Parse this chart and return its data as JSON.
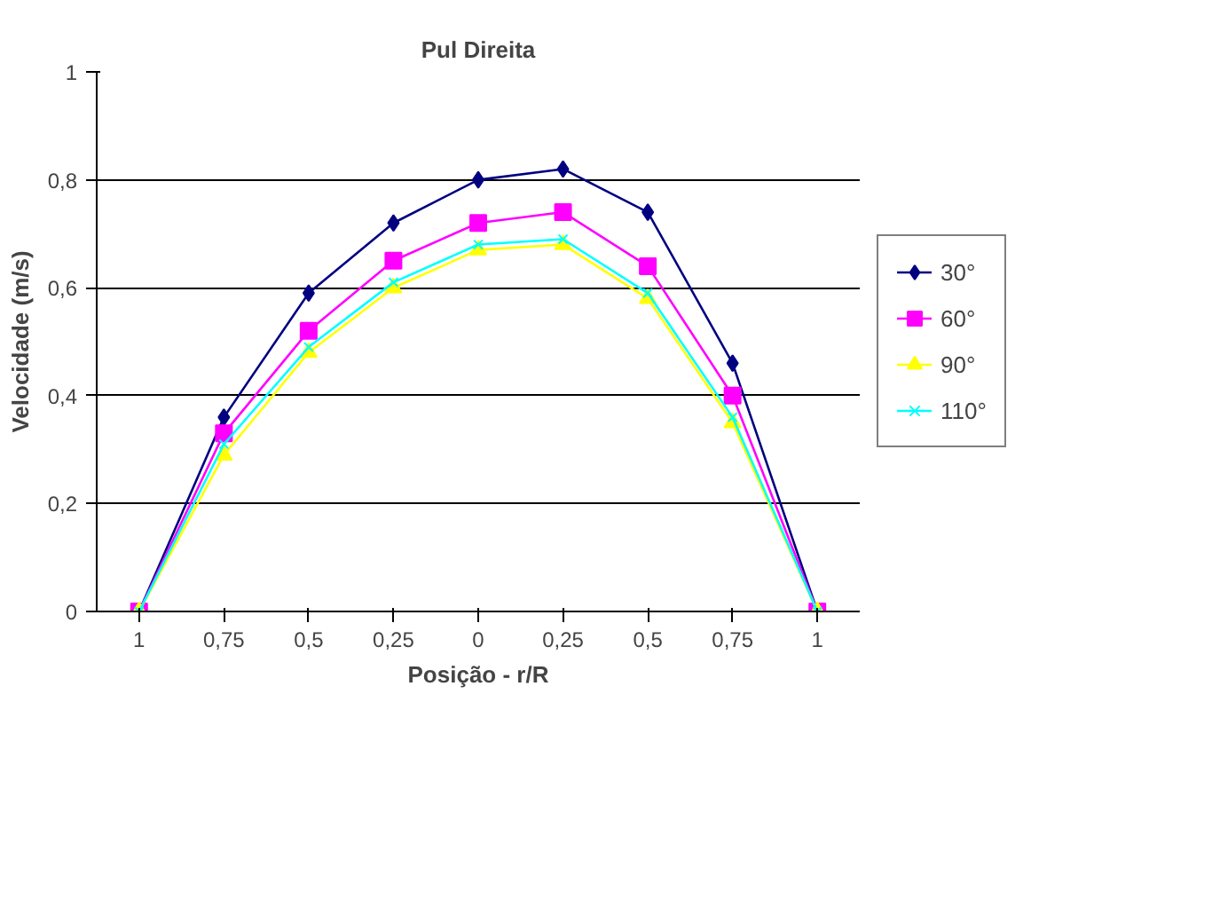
{
  "chart_data": {
    "type": "line",
    "title": "Pul Direita",
    "xlabel": "Posição - r/R",
    "ylabel": "Velocidade (m/s)",
    "categories": [
      "1",
      "0,75",
      "0,5",
      "0,25",
      "0",
      "0,25",
      "0,5",
      "0,75",
      "1"
    ],
    "ylim": [
      0,
      1
    ],
    "yticks": [
      0,
      {
        "value": 0.2,
        "label": "0,2"
      },
      {
        "value": 0.4,
        "label": "0,4"
      },
      {
        "value": 0.6,
        "label": "0,6"
      },
      {
        "value": 0.8,
        "label": "0,8"
      },
      1
    ],
    "grid": "y",
    "legend": "right",
    "line_style": "solid",
    "series": [
      {
        "name": "30°",
        "color": "#000080",
        "marker": "diamond",
        "values": [
          0,
          0.36,
          0.59,
          0.72,
          0.8,
          0.82,
          0.74,
          0.46,
          0
        ]
      },
      {
        "name": "60°",
        "color": "#ff00ff",
        "marker": "square",
        "values": [
          0,
          0.33,
          0.52,
          0.65,
          0.72,
          0.74,
          0.64,
          0.4,
          0
        ]
      },
      {
        "name": "90°",
        "color": "#ffff00",
        "marker": "triangle",
        "values": [
          0,
          0.29,
          0.48,
          0.6,
          0.67,
          0.68,
          0.58,
          0.35,
          0
        ]
      },
      {
        "name": "110°",
        "color": "#00ffff",
        "marker": "cross",
        "values": [
          0,
          0.31,
          0.49,
          0.61,
          0.68,
          0.69,
          0.59,
          0.36,
          0
        ]
      }
    ]
  }
}
